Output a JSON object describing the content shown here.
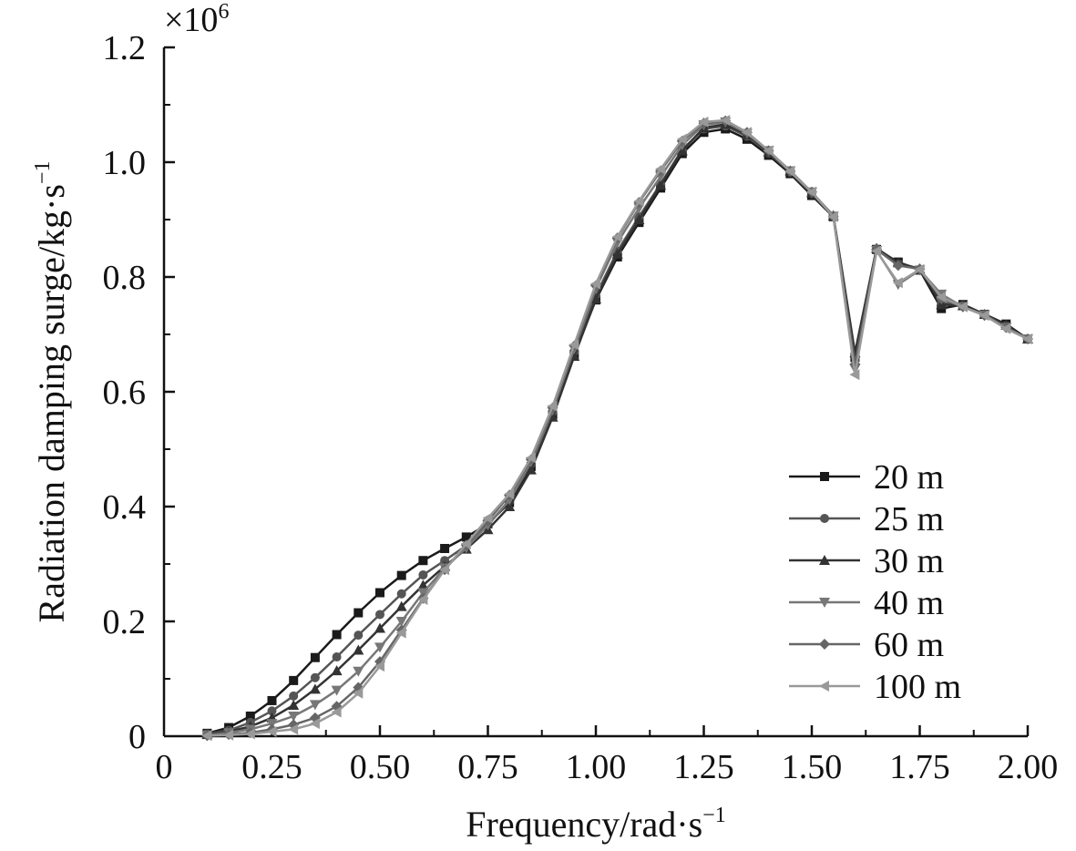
{
  "chart_data": {
    "type": "line",
    "xlabel": "Frequency/rad·s",
    "xlabel_sup": "−1",
    "ylabel": "Radiation damping surge/kg·s",
    "ylabel_sup": "−1",
    "y_multiplier": "×10",
    "y_multiplier_exp": "6",
    "xlim": [
      0,
      2.0
    ],
    "ylim": [
      0,
      1.2
    ],
    "x_ticks": [
      0,
      0.25,
      0.5,
      0.75,
      1.0,
      1.25,
      1.5,
      1.75,
      2.0
    ],
    "x_tick_labels": [
      "0",
      "0.25",
      "0.50",
      "0.75",
      "1.00",
      "1.25",
      "1.50",
      "1.75",
      "2.00"
    ],
    "y_ticks": [
      0,
      0.2,
      0.4,
      0.6,
      0.8,
      1.0,
      1.2
    ],
    "y_tick_labels": [
      "0",
      "0.2",
      "0.4",
      "0.6",
      "0.8",
      "1.0",
      "1.2"
    ],
    "grid": false,
    "legend_position": "bottom-right",
    "x": [
      0.1,
      0.15,
      0.2,
      0.25,
      0.3,
      0.35,
      0.4,
      0.45,
      0.5,
      0.55,
      0.6,
      0.65,
      0.7,
      0.75,
      0.8,
      0.85,
      0.9,
      0.95,
      1.0,
      1.05,
      1.1,
      1.15,
      1.2,
      1.25,
      1.3,
      1.35,
      1.4,
      1.45,
      1.5,
      1.55,
      1.6,
      1.65,
      1.7,
      1.75,
      1.8,
      1.85,
      1.9,
      1.95,
      2.0
    ],
    "series": [
      {
        "name": "20 m",
        "marker": "square",
        "color": "#1a1a1a",
        "values": [
          0.005,
          0.015,
          0.035,
          0.062,
          0.097,
          0.137,
          0.177,
          0.215,
          0.25,
          0.28,
          0.306,
          0.327,
          0.347,
          0.37,
          0.407,
          0.47,
          0.56,
          0.665,
          0.76,
          0.835,
          0.895,
          0.955,
          1.015,
          1.052,
          1.058,
          1.04,
          1.012,
          0.98,
          0.942,
          0.905,
          0.66,
          0.848,
          0.826,
          0.812,
          0.745,
          0.752,
          0.735,
          0.718,
          0.692
        ]
      },
      {
        "name": "25 m",
        "marker": "circle",
        "color": "#555555",
        "values": [
          0.004,
          0.01,
          0.024,
          0.044,
          0.07,
          0.102,
          0.138,
          0.176,
          0.212,
          0.248,
          0.281,
          0.306,
          0.332,
          0.368,
          0.41,
          0.474,
          0.565,
          0.67,
          0.768,
          0.845,
          0.905,
          0.962,
          1.022,
          1.058,
          1.063,
          1.045,
          1.016,
          0.983,
          0.945,
          0.906,
          0.665,
          0.849,
          0.823,
          0.813,
          0.755,
          0.75,
          0.735,
          0.715,
          0.692
        ]
      },
      {
        "name": "30 m",
        "marker": "triangle-up",
        "color": "#333333",
        "values": [
          0.003,
          0.008,
          0.017,
          0.032,
          0.054,
          0.082,
          0.114,
          0.15,
          0.188,
          0.226,
          0.263,
          0.296,
          0.326,
          0.36,
          0.4,
          0.464,
          0.556,
          0.662,
          0.762,
          0.84,
          0.9,
          0.96,
          1.02,
          1.06,
          1.066,
          1.048,
          1.018,
          0.985,
          0.947,
          0.907,
          0.668,
          0.85,
          0.825,
          0.814,
          0.752,
          0.75,
          0.735,
          0.716,
          0.692
        ]
      },
      {
        "name": "40 m",
        "marker": "triangle-down",
        "color": "#777777",
        "values": [
          0.002,
          0.006,
          0.012,
          0.022,
          0.035,
          0.055,
          0.08,
          0.113,
          0.155,
          0.2,
          0.25,
          0.293,
          0.328,
          0.368,
          0.412,
          0.478,
          0.568,
          0.675,
          0.78,
          0.86,
          0.92,
          0.975,
          1.03,
          1.065,
          1.07,
          1.05,
          1.02,
          0.985,
          0.948,
          0.906,
          0.64,
          0.846,
          0.787,
          0.812,
          0.77,
          0.748,
          0.734,
          0.712,
          0.692
        ]
      },
      {
        "name": "60 m",
        "marker": "diamond",
        "color": "#666666",
        "values": [
          0.001,
          0.003,
          0.006,
          0.012,
          0.02,
          0.032,
          0.052,
          0.085,
          0.13,
          0.185,
          0.24,
          0.29,
          0.333,
          0.375,
          0.42,
          0.482,
          0.572,
          0.68,
          0.785,
          0.868,
          0.93,
          0.985,
          1.037,
          1.068,
          1.072,
          1.052,
          1.02,
          0.984,
          0.948,
          0.905,
          0.648,
          0.848,
          0.82,
          0.814,
          0.762,
          0.748,
          0.733,
          0.712,
          0.692
        ]
      },
      {
        "name": "100 m",
        "marker": "triangle-left",
        "color": "#999999",
        "values": [
          0.001,
          0.002,
          0.004,
          0.008,
          0.012,
          0.022,
          0.042,
          0.075,
          0.122,
          0.18,
          0.238,
          0.29,
          0.335,
          0.38,
          0.422,
          0.485,
          0.575,
          0.682,
          0.788,
          0.87,
          0.932,
          0.988,
          1.04,
          1.07,
          1.073,
          1.052,
          1.02,
          0.984,
          0.948,
          0.905,
          0.63,
          0.845,
          0.79,
          0.813,
          0.765,
          0.748,
          0.733,
          0.71,
          0.692
        ]
      }
    ]
  }
}
